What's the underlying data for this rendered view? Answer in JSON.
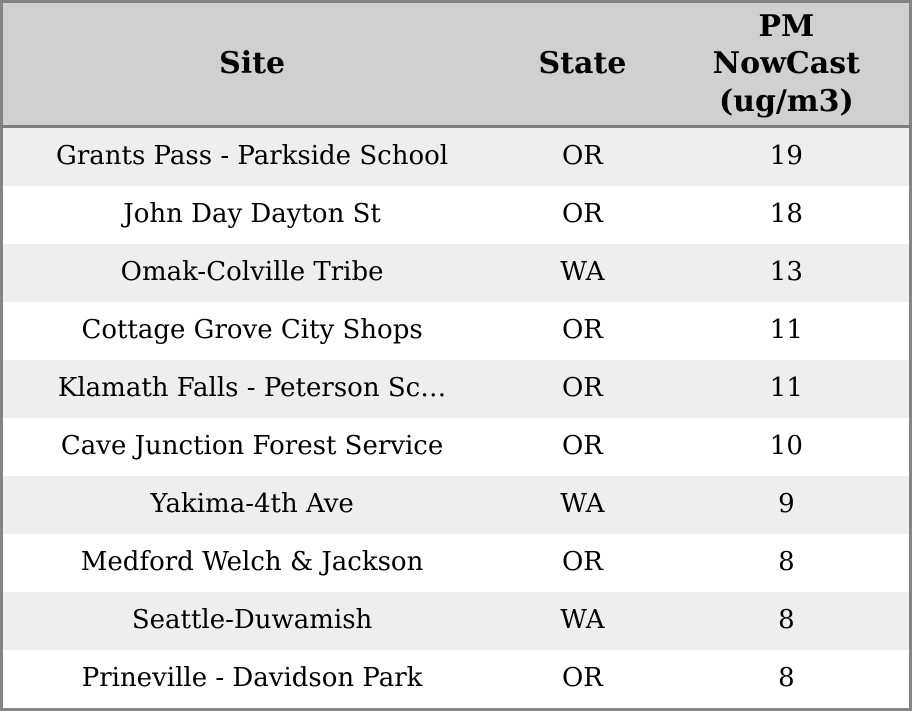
{
  "header": {
    "site": "Site",
    "state": "State",
    "pm": "PM\nNowCast\n(ug/m3)"
  },
  "chart_data": {
    "type": "table",
    "columns": [
      "Site",
      "State",
      "PM NowCast (ug/m3)"
    ],
    "rows": [
      [
        "Grants Pass - Parkside School",
        "OR",
        19
      ],
      [
        "John Day Dayton St",
        "OR",
        18
      ],
      [
        "Omak-Colville Tribe",
        "WA",
        13
      ],
      [
        "Cottage Grove City Shops",
        "OR",
        11
      ],
      [
        "Klamath Falls - Peterson Sc…",
        "OR",
        11
      ],
      [
        "Cave Junction Forest Service",
        "OR",
        10
      ],
      [
        "Yakima-4th Ave",
        "WA",
        9
      ],
      [
        "Medford Welch & Jackson",
        "OR",
        8
      ],
      [
        "Seattle-Duwamish",
        "WA",
        8
      ],
      [
        "Prineville - Davidson Park",
        "OR",
        8
      ]
    ],
    "sort": "PM NowCast (ug/m3) descending",
    "layout": {
      "header_background": "#d0d0d0",
      "row_alt_background": "#eeeeee",
      "row_background": "#ffffff",
      "border_color": "#848484",
      "header_separator_color": "#7f7f7f",
      "text_color": "#000000"
    }
  }
}
